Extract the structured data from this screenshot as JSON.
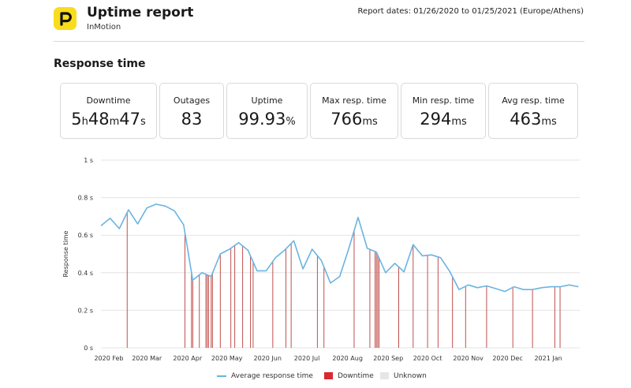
{
  "header": {
    "title": "Uptime report",
    "subtitle": "InMotion",
    "report_dates": "Report dates: 01/26/2020 to 01/25/2021 (Europe/Athens)",
    "logo_icon": "p-letter-logo-icon",
    "logo_color": "#f9dc1c"
  },
  "section_title": "Response time",
  "cards": {
    "downtime": {
      "label": "Downtime",
      "h": "5",
      "h_unit": "h",
      "m": "48",
      "m_unit": "m",
      "s": "47",
      "s_unit": "s"
    },
    "outages": {
      "label": "Outages",
      "value": "83"
    },
    "uptime": {
      "label": "Uptime",
      "value": "99.93",
      "unit": "%"
    },
    "max_resp": {
      "label": "Max resp. time",
      "value": "766",
      "unit": "ms"
    },
    "min_resp": {
      "label": "Min resp. time",
      "value": "294",
      "unit": "ms"
    },
    "avg_resp": {
      "label": "Avg resp. time",
      "value": "463",
      "unit": "ms"
    }
  },
  "chart_data": {
    "type": "line",
    "ylabel": "Response time",
    "ylim": [
      0,
      1
    ],
    "yticks": [
      {
        "value": 0,
        "label": "0 s"
      },
      {
        "value": 0.2,
        "label": "0.2 s"
      },
      {
        "value": 0.4,
        "label": "0.4 s"
      },
      {
        "value": 0.6,
        "label": "0.6 s"
      },
      {
        "value": 0.8,
        "label": "0.8 s"
      },
      {
        "value": 1,
        "label": "1 s"
      }
    ],
    "xlim_days": [
      0,
      365
    ],
    "xticks": [
      {
        "day": 6,
        "label": "2020 Feb"
      },
      {
        "day": 35,
        "label": "2020 Mar"
      },
      {
        "day": 66,
        "label": "2020 Apr"
      },
      {
        "day": 96,
        "label": "2020 May"
      },
      {
        "day": 127,
        "label": "2020 Jun"
      },
      {
        "day": 157,
        "label": "2020 Jul"
      },
      {
        "day": 188,
        "label": "2020 Aug"
      },
      {
        "day": 219,
        "label": "2020 Sep"
      },
      {
        "day": 249,
        "label": "2020 Oct"
      },
      {
        "day": 280,
        "label": "2020 Nov"
      },
      {
        "day": 310,
        "label": "2020 Dec"
      },
      {
        "day": 341,
        "label": "2021 Jan"
      }
    ],
    "series": [
      {
        "name": "Average response time",
        "color": "#6ab4e2",
        "x": [
          0,
          7,
          14,
          21,
          28,
          35,
          42,
          49,
          56,
          63,
          70,
          77,
          84,
          91,
          98,
          105,
          112,
          119,
          126,
          133,
          140,
          147,
          154,
          161,
          168,
          175,
          182,
          189,
          196,
          203,
          210,
          217,
          224,
          231,
          238,
          245,
          252,
          259,
          266,
          273,
          280,
          287,
          294,
          301,
          308,
          315,
          322,
          329,
          336,
          343,
          350,
          357,
          364
        ],
        "values": [
          0.65,
          0.69,
          0.635,
          0.735,
          0.66,
          0.745,
          0.765,
          0.755,
          0.73,
          0.655,
          0.36,
          0.4,
          0.38,
          0.5,
          0.525,
          0.56,
          0.52,
          0.41,
          0.41,
          0.48,
          0.52,
          0.57,
          0.42,
          0.525,
          0.465,
          0.345,
          0.38,
          0.53,
          0.695,
          0.53,
          0.51,
          0.4,
          0.45,
          0.405,
          0.55,
          0.49,
          0.495,
          0.48,
          0.405,
          0.31,
          0.335,
          0.32,
          0.33,
          0.315,
          0.3,
          0.325,
          0.31,
          0.31,
          0.32,
          0.325,
          0.325,
          0.335,
          0.325
        ]
      }
    ],
    "downtime_days": [
      20,
      64,
      69,
      70,
      75,
      80,
      81,
      82,
      84,
      85,
      91,
      99,
      102,
      108,
      114,
      116,
      131,
      141,
      145,
      165,
      170,
      193,
      205,
      209,
      210,
      211,
      212,
      227,
      238,
      249,
      257,
      268,
      278,
      294,
      314,
      329,
      346,
      350
    ],
    "downtime_color": "#c0504d",
    "legend": [
      {
        "label": "Average response time",
        "color": "#6ab4e2",
        "kind": "line"
      },
      {
        "label": "Downtime",
        "color": "#d9282f",
        "kind": "box"
      },
      {
        "label": "Unknown",
        "color": "#e6e6e6",
        "kind": "box"
      }
    ]
  }
}
